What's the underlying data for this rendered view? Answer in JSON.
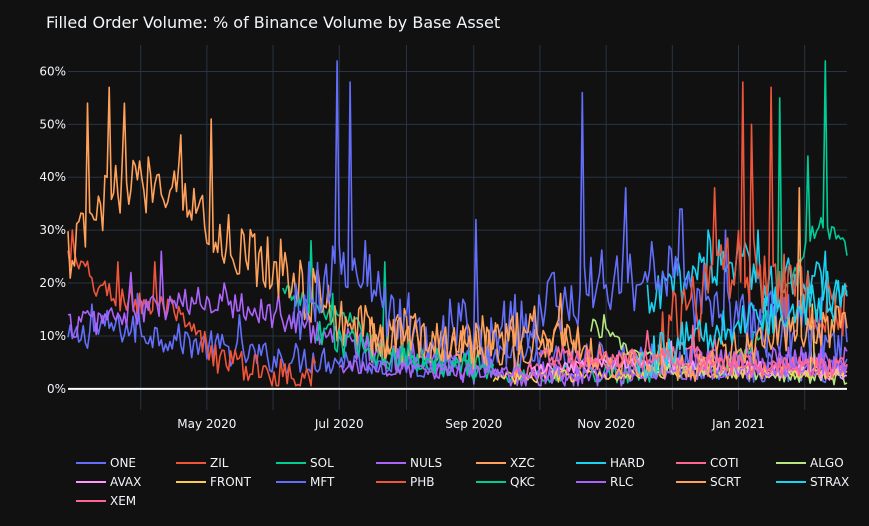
{
  "chart_data": {
    "type": "line",
    "title": "Filled Order Volume: % of Binance Volume by Base Asset",
    "xlabel": "",
    "ylabel": "",
    "x_range": [
      "2020-02-27",
      "2021-02-20"
    ],
    "ylim": [
      -4,
      65
    ],
    "y_ticks": [
      0,
      10,
      20,
      30,
      40,
      50,
      60
    ],
    "y_tick_labels": [
      "0%",
      "10%",
      "20%",
      "30%",
      "40%",
      "50%",
      "60%"
    ],
    "x_ticks": [
      "2020-05-01",
      "2020-07-01",
      "2020-09-01",
      "2020-11-01",
      "2021-01-01"
    ],
    "x_tick_labels": [
      "May 2020",
      "Jul 2020",
      "Sep 2020",
      "Nov 2020",
      "Jan 2021"
    ],
    "grid": true,
    "legend_position": "bottom",
    "series": [
      {
        "name": "ONE",
        "color": "#636efa",
        "start": "2020-02-27",
        "end": "2021-02-20",
        "base": 9,
        "noise": 3,
        "anchors": [
          [
            0,
            9
          ],
          [
            0.05,
            12
          ],
          [
            0.12,
            10
          ],
          [
            0.25,
            6
          ],
          [
            0.45,
            5
          ],
          [
            0.7,
            6
          ],
          [
            0.8,
            5
          ],
          [
            0.9,
            4
          ],
          [
            1,
            4
          ]
        ],
        "spikes": [
          [
            0.03,
            16
          ],
          [
            0.09,
            18
          ],
          [
            0.22,
            14
          ]
        ]
      },
      {
        "name": "ZIL",
        "color": "#EF553B",
        "start": "2020-02-27",
        "end": "2020-06-20",
        "base": 8,
        "noise": 3,
        "anchors": [
          [
            0,
            25
          ],
          [
            0.15,
            18
          ],
          [
            0.4,
            15
          ],
          [
            0.6,
            6
          ],
          [
            0.8,
            3
          ],
          [
            1,
            3
          ]
        ],
        "spikes": [
          [
            0.02,
            30
          ],
          [
            0.2,
            24
          ],
          [
            0.35,
            24
          ]
        ]
      },
      {
        "name": "SOL",
        "color": "#00cc96",
        "start": "2020-06-05",
        "end": "2021-02-20",
        "base": 4,
        "noise": 2,
        "anchors": [
          [
            0,
            18
          ],
          [
            0.1,
            14
          ],
          [
            0.2,
            6
          ],
          [
            0.4,
            3
          ],
          [
            0.6,
            3
          ],
          [
            0.8,
            4
          ],
          [
            0.9,
            20
          ],
          [
            0.95,
            32
          ],
          [
            1,
            26
          ]
        ],
        "spikes": [
          [
            0.05,
            28
          ],
          [
            0.18,
            24
          ],
          [
            0.88,
            55
          ],
          [
            0.96,
            62
          ],
          [
            0.93,
            44
          ]
        ]
      },
      {
        "name": "NULS",
        "color": "#ab63fa",
        "start": "2020-02-27",
        "end": "2021-02-20",
        "base": 6,
        "noise": 3,
        "anchors": [
          [
            0,
            12
          ],
          [
            0.1,
            15
          ],
          [
            0.2,
            17
          ],
          [
            0.3,
            12
          ],
          [
            0.4,
            7
          ],
          [
            0.55,
            3
          ],
          [
            0.7,
            3
          ],
          [
            0.8,
            5
          ],
          [
            1,
            5
          ]
        ],
        "spikes": [
          [
            0.08,
            22
          ],
          [
            0.12,
            26
          ],
          [
            0.2,
            20
          ],
          [
            0.27,
            18
          ]
        ]
      },
      {
        "name": "XZC",
        "color": "#FFA15A",
        "start": "2020-02-27",
        "end": "2020-10-20",
        "base": 10,
        "noise": 6,
        "anchors": [
          [
            0,
            25
          ],
          [
            0.1,
            38
          ],
          [
            0.2,
            40
          ],
          [
            0.3,
            28
          ],
          [
            0.4,
            24
          ],
          [
            0.5,
            16
          ],
          [
            0.6,
            10
          ],
          [
            0.75,
            8
          ],
          [
            0.9,
            8
          ],
          [
            1,
            10
          ]
        ],
        "spikes": [
          [
            0.04,
            54
          ],
          [
            0.08,
            57
          ],
          [
            0.11,
            54
          ],
          [
            0.22,
            48
          ],
          [
            0.28,
            51
          ]
        ]
      },
      {
        "name": "HARD",
        "color": "#19d3f3",
        "start": "2020-11-20",
        "end": "2021-02-20",
        "base": 18,
        "noise": 5,
        "anchors": [
          [
            0,
            15
          ],
          [
            0.2,
            22
          ],
          [
            0.4,
            25
          ],
          [
            0.6,
            20
          ],
          [
            0.8,
            22
          ],
          [
            1,
            14
          ]
        ],
        "spikes": [
          [
            0.3,
            30
          ],
          [
            0.55,
            30
          ]
        ]
      },
      {
        "name": "COTI",
        "color": "#FF6692",
        "start": "2020-09-20",
        "end": "2021-02-20",
        "base": 5,
        "noise": 1.8,
        "anchors": [
          [
            0,
            3
          ],
          [
            0.3,
            5
          ],
          [
            0.5,
            7
          ],
          [
            0.7,
            5
          ],
          [
            1,
            4
          ]
        ],
        "spikes": [
          [
            0.4,
            11
          ],
          [
            0.6,
            10
          ]
        ]
      },
      {
        "name": "ALGO",
        "color": "#B6E880",
        "start": "2020-10-25",
        "end": "2021-02-20",
        "base": 3,
        "noise": 1.5,
        "anchors": [
          [
            0,
            12
          ],
          [
            0.2,
            6
          ],
          [
            0.4,
            3
          ],
          [
            0.7,
            3
          ],
          [
            1,
            2
          ]
        ],
        "spikes": [
          [
            0.05,
            14
          ]
        ]
      },
      {
        "name": "AVAX",
        "color": "#FF97FF",
        "start": "2020-09-25",
        "end": "2021-02-20",
        "base": 4,
        "noise": 1.5,
        "anchors": [
          [
            0,
            3
          ],
          [
            0.3,
            5
          ],
          [
            0.6,
            4
          ],
          [
            1,
            3
          ]
        ],
        "spikes": [
          [
            0.45,
            9
          ]
        ]
      },
      {
        "name": "FRONT",
        "color": "#FECB52",
        "start": "2020-09-10",
        "end": "2021-02-20",
        "base": 3,
        "noise": 1.2,
        "anchors": [
          [
            0,
            2
          ],
          [
            0.5,
            3
          ],
          [
            1,
            3
          ]
        ],
        "spikes": [
          [
            0.9,
            16
          ]
        ]
      },
      {
        "name": "MFT",
        "color": "#636efa",
        "start": "2020-06-10",
        "end": "2021-02-20",
        "base": 14,
        "noise": 7,
        "anchors": [
          [
            0,
            15
          ],
          [
            0.1,
            25
          ],
          [
            0.2,
            12
          ],
          [
            0.35,
            10
          ],
          [
            0.45,
            14
          ],
          [
            0.55,
            20
          ],
          [
            0.65,
            22
          ],
          [
            0.75,
            16
          ],
          [
            0.85,
            12
          ],
          [
            1,
            10
          ]
        ],
        "spikes": [
          [
            0.08,
            62
          ],
          [
            0.1,
            58
          ],
          [
            0.33,
            32
          ],
          [
            0.52,
            56
          ],
          [
            0.6,
            38
          ],
          [
            0.7,
            34
          ],
          [
            0.78,
            30
          ]
        ]
      },
      {
        "name": "PHB",
        "color": "#EF553B",
        "start": "2020-11-25",
        "end": "2021-02-20",
        "base": 18,
        "noise": 7,
        "anchors": [
          [
            0,
            10
          ],
          [
            0.2,
            15
          ],
          [
            0.4,
            25
          ],
          [
            0.6,
            20
          ],
          [
            0.8,
            18
          ],
          [
            1,
            15
          ]
        ],
        "spikes": [
          [
            0.3,
            38
          ],
          [
            0.45,
            58
          ],
          [
            0.5,
            50
          ],
          [
            0.6,
            57
          ]
        ]
      },
      {
        "name": "QKC",
        "color": "#00cc96",
        "start": "2020-06-20",
        "end": "2020-09-10",
        "base": 6,
        "noise": 3,
        "anchors": [
          [
            0,
            10
          ],
          [
            0.5,
            6
          ],
          [
            1,
            4
          ]
        ],
        "spikes": [
          [
            0.1,
            18
          ]
        ]
      },
      {
        "name": "RLC",
        "color": "#ab63fa",
        "start": "2020-07-01",
        "end": "2021-02-20",
        "base": 3,
        "noise": 1.5,
        "anchors": [
          [
            0,
            4
          ],
          [
            0.3,
            3
          ],
          [
            0.7,
            3
          ],
          [
            1,
            4
          ]
        ],
        "spikes": [
          [
            0.95,
            8
          ]
        ]
      },
      {
        "name": "SCRT",
        "color": "#FFA15A",
        "start": "2020-07-15",
        "end": "2021-02-20",
        "base": 8,
        "noise": 4,
        "anchors": [
          [
            0,
            10
          ],
          [
            0.25,
            8
          ],
          [
            0.35,
            12
          ],
          [
            0.5,
            6
          ],
          [
            0.7,
            5
          ],
          [
            0.85,
            10
          ],
          [
            1,
            12
          ]
        ],
        "spikes": [
          [
            0.4,
            18
          ],
          [
            0.9,
            38
          ]
        ]
      },
      {
        "name": "STRAX",
        "color": "#19d3f3",
        "start": "2020-11-15",
        "end": "2021-02-20",
        "base": 8,
        "noise": 4,
        "anchors": [
          [
            0,
            5
          ],
          [
            0.3,
            10
          ],
          [
            0.6,
            14
          ],
          [
            1,
            18
          ]
        ],
        "spikes": [
          [
            0.9,
            26
          ]
        ]
      },
      {
        "name": "XEM",
        "color": "#FF6692",
        "start": "2020-10-01",
        "end": "2021-02-20",
        "base": 5,
        "noise": 2,
        "anchors": [
          [
            0,
            6
          ],
          [
            0.4,
            6
          ],
          [
            0.7,
            4
          ],
          [
            1,
            4
          ]
        ],
        "spikes": [
          [
            0.5,
            12
          ]
        ]
      }
    ]
  }
}
